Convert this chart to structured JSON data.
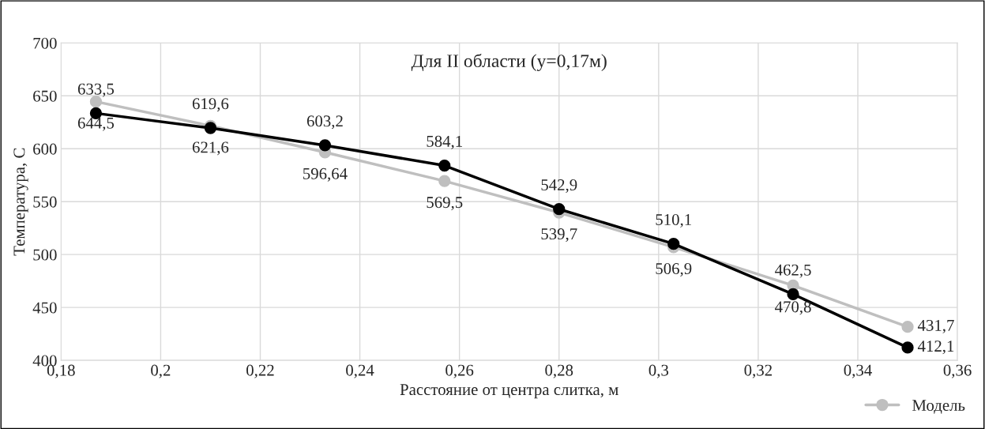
{
  "chart_data": {
    "type": "line",
    "title": "Для II области (y=0,17м)",
    "xlabel": "Расстояние от центра слитка, м",
    "ylabel": "Температура, С",
    "x": [
      0.187,
      0.21,
      0.233,
      0.257,
      0.28,
      0.303,
      0.327,
      0.35
    ],
    "series": [
      {
        "color": "#000000",
        "values": [
          633.5,
          619.6,
          603.2,
          584.1,
          542.9,
          510.1,
          462.5,
          412.1
        ],
        "value_labels": [
          "633,5",
          "619,6",
          "603,2",
          "584,1",
          "542,9",
          "510,1",
          "462,5",
          "412,1"
        ]
      },
      {
        "name": "Модель",
        "color": "#bfbfbf",
        "values": [
          644.5,
          621.6,
          596.64,
          569.5,
          539.7,
          506.9,
          470.8,
          431.7
        ],
        "value_labels": [
          "644,5",
          "621,6",
          "596,64",
          "569,5",
          "539,7",
          "506,9",
          "470,8",
          "431,7"
        ]
      }
    ],
    "xlim": [
      0.18,
      0.36
    ],
    "xticks": [
      {
        "value": 0.18,
        "label": "0,18"
      },
      {
        "value": 0.2,
        "label": "0,2"
      },
      {
        "value": 0.22,
        "label": "0,22"
      },
      {
        "value": 0.24,
        "label": "0,24"
      },
      {
        "value": 0.26,
        "label": "0,26"
      },
      {
        "value": 0.28,
        "label": "0,28"
      },
      {
        "value": 0.3,
        "label": "0,3"
      },
      {
        "value": 0.32,
        "label": "0,32"
      },
      {
        "value": 0.34,
        "label": "0,34"
      },
      {
        "value": 0.36,
        "label": "0,36"
      }
    ],
    "ylim": [
      400,
      700
    ],
    "yticks": [
      400,
      450,
      500,
      550,
      600,
      650,
      700
    ],
    "grid": true,
    "legend": "bottom right",
    "marker": "circle",
    "line_style": "solid"
  }
}
